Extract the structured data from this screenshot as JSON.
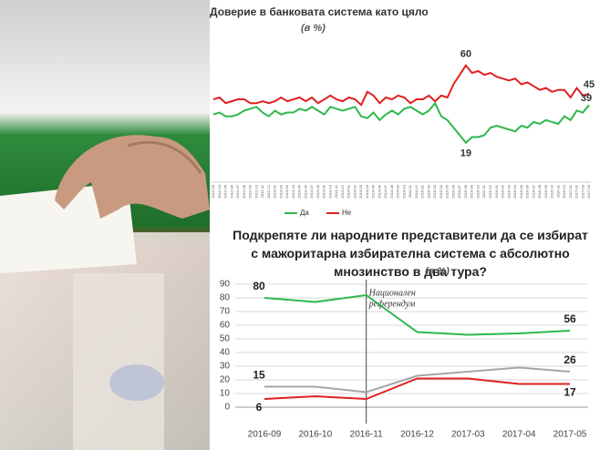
{
  "chart_data": [
    {
      "type": "line",
      "title": "Доверие в банковата система като цяло",
      "subtitle": "(в %)",
      "categories": [
        "2012-03",
        "2012-04",
        "2012-05",
        "2012-06",
        "2012-07",
        "2012-08",
        "2012-09",
        "2012-10",
        "2012-11",
        "2012-12",
        "2013-01",
        "2013-02",
        "2013-03",
        "2013-04",
        "2013-05",
        "2013-06",
        "2013-07",
        "2013-08",
        "2013-09",
        "2013-10",
        "2013-11",
        "2013-12",
        "2014-01",
        "2014-02",
        "2014-03",
        "2014-04",
        "2014-05",
        "2014-06",
        "2014-07",
        "2014-08",
        "2014-09",
        "2014-10",
        "2014-11",
        "2014-12",
        "2015-01",
        "2015-02",
        "2015-03",
        "2015-04",
        "2015-05",
        "2015-06",
        "2015-07",
        "2015-08",
        "2015-09",
        "2015-10",
        "2015-11",
        "2015-12",
        "2016-01",
        "2016-02",
        "2016-03",
        "2016-04",
        "2016-05",
        "2016-06",
        "2016-07",
        "2016-08",
        "2016-09",
        "2016-10",
        "2016-11",
        "2016-12",
        "2017-01",
        "2017-02",
        "2017-03",
        "2017-04"
      ],
      "series": [
        {
          "name": "Да",
          "color": "#2eb84b",
          "values": [
            34,
            35,
            33,
            33,
            34,
            36,
            37,
            38,
            35,
            33,
            36,
            34,
            35,
            35,
            37,
            36,
            38,
            36,
            34,
            38,
            37,
            36,
            37,
            38,
            33,
            32,
            35,
            31,
            34,
            36,
            34,
            37,
            38,
            36,
            34,
            36,
            40,
            33,
            31,
            27,
            23,
            19,
            22,
            22,
            23,
            27,
            28,
            27,
            26,
            25,
            28,
            27,
            30,
            29,
            31,
            30,
            29,
            33,
            31,
            36,
            35,
            39
          ]
        },
        {
          "name": "Не",
          "color": "#e02020",
          "values": [
            42,
            43,
            40,
            41,
            42,
            42,
            40,
            40,
            41,
            40,
            41,
            43,
            41,
            42,
            43,
            41,
            43,
            40,
            42,
            44,
            42,
            41,
            43,
            42,
            39,
            46,
            44,
            40,
            43,
            42,
            44,
            43,
            40,
            42,
            42,
            44,
            41,
            44,
            43,
            50,
            55,
            60,
            56,
            57,
            55,
            56,
            54,
            53,
            52,
            53,
            50,
            51,
            49,
            47,
            48,
            46,
            47,
            47,
            43,
            48,
            44,
            45
          ]
        }
      ]
    },
    {
      "type": "line",
      "title": "Подкрепяте ли народните представители да се избират с мажоритарна избирателна система с абсолютно мнозинство в два тура?",
      "subtitle": "(в %)",
      "categories": [
        "2016-09",
        "2016-10",
        "2016-11",
        "2016-12",
        "2017-03",
        "2017-04",
        "2017-05"
      ],
      "ylim": [
        0,
        90
      ],
      "yticks": [
        0,
        10,
        20,
        30,
        40,
        50,
        60,
        70,
        80,
        90
      ],
      "grid": true,
      "annotation": {
        "text": [
          "Национален",
          "референдум"
        ],
        "x": "2016-11"
      },
      "series": [
        {
          "color": "#2eb84b",
          "values": [
            80,
            77,
            82,
            55,
            53,
            54,
            56
          ]
        },
        {
          "color": "#a6a6a6",
          "values": [
            15,
            15,
            11,
            23,
            26,
            29,
            26
          ]
        },
        {
          "color": "#e02020",
          "values": [
            6,
            8,
            6,
            21,
            21,
            17,
            17
          ]
        }
      ]
    }
  ]
}
